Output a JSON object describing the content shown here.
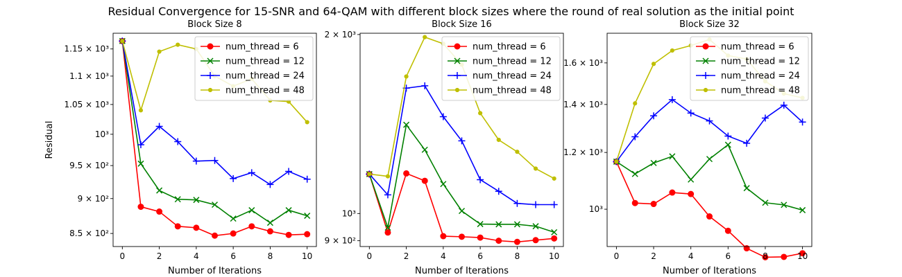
{
  "suptitle": "Residual Convergence for 15-SNR and 64-QAM with different block sizes where the round of real solution as the initial point",
  "colors": {
    "num_thread = 6": "#ff0000",
    "num_thread = 12": "#008000",
    "num_thread = 24": "#0000ff",
    "num_thread = 48": "#bfbf00"
  },
  "chart_data": [
    {
      "type": "line",
      "title": "Block Size 8",
      "xlabel": "Number of Iterations",
      "ylabel": "Residual",
      "yscale": "log",
      "xlim": [
        -0.5,
        10.5
      ],
      "ylim": [
        832,
        1180
      ],
      "x": [
        0,
        1,
        2,
        3,
        4,
        5,
        6,
        7,
        8,
        9,
        10
      ],
      "xticks": [
        "0",
        "2",
        "4",
        "6",
        "8",
        "10"
      ],
      "yticks": [
        {
          "value": 850,
          "label": "8.5 × 10²"
        },
        {
          "value": 900,
          "label": "9 × 10²"
        },
        {
          "value": 950,
          "label": "9.5 × 10²"
        },
        {
          "value": 1000,
          "label": "10³"
        },
        {
          "value": 1050,
          "label": "1.05 × 10³"
        },
        {
          "value": 1100,
          "label": "1.1 × 10³"
        },
        {
          "value": 1150,
          "label": "1.15 × 10³"
        }
      ],
      "legend_position": "top-right",
      "series": [
        {
          "name": "num_thread = 6",
          "marker": "o",
          "values": [
            1165,
            888,
            881,
            860,
            858,
            847,
            850,
            860,
            853,
            848,
            849
          ]
        },
        {
          "name": "num_thread = 12",
          "marker": "x",
          "values": [
            1165,
            953,
            912,
            899,
            898,
            891,
            871,
            883,
            865,
            883,
            875
          ]
        },
        {
          "name": "num_thread = 24",
          "marker": "+",
          "values": [
            1165,
            983,
            1013,
            988,
            957,
            958,
            930,
            939,
            921,
            941,
            929
          ]
        },
        {
          "name": "num_thread = 48",
          "marker": ".",
          "values": [
            1165,
            1040,
            1145,
            1158,
            1150,
            1100,
            1082,
            1095,
            1057,
            1055,
            1020
          ]
        }
      ]
    },
    {
      "type": "line",
      "title": "Block Size 16",
      "xlabel": "Number of Iterations",
      "ylabel": "",
      "yscale": "log",
      "xlim": [
        -0.5,
        10.5
      ],
      "ylim": [
        880,
        2010
      ],
      "x": [
        0,
        1,
        2,
        3,
        4,
        5,
        6,
        7,
        8,
        9,
        10
      ],
      "xticks": [
        "0",
        "2",
        "4",
        "6",
        "8",
        "10"
      ],
      "yticks": [
        {
          "value": 900,
          "label": "9 × 10²"
        },
        {
          "value": 1000,
          "label": "10³"
        },
        {
          "value": 2000,
          "label": "2 × 10³"
        }
      ],
      "legend_position": "top-right",
      "series": [
        {
          "name": "num_thread = 6",
          "marker": "o",
          "values": [
            1165,
            929,
            1168,
            1135,
            916,
            914,
            911,
            900,
            896,
            902,
            908
          ]
        },
        {
          "name": "num_thread = 12",
          "marker": "x",
          "values": [
            1165,
            947,
            1410,
            1280,
            1121,
            1010,
            960,
            959,
            959,
            952,
            930
          ]
        },
        {
          "name": "num_thread = 24",
          "marker": "+",
          "values": [
            1165,
            1075,
            1625,
            1640,
            1455,
            1325,
            1140,
            1090,
            1040,
            1035,
            1035
          ]
        },
        {
          "name": "num_thread = 48",
          "marker": ".",
          "values": [
            1165,
            1155,
            1700,
            1980,
            1930,
            1780,
            1475,
            1330,
            1270,
            1190,
            1145
          ]
        }
      ]
    },
    {
      "type": "line",
      "title": "Block Size 32",
      "xlabel": "Number of Iterations",
      "ylabel": "",
      "yscale": "log",
      "xlim": [
        -0.5,
        10.5
      ],
      "ylim": [
        887,
        1760
      ],
      "x": [
        0,
        1,
        2,
        3,
        4,
        5,
        6,
        7,
        8,
        9,
        10
      ],
      "xticks": [
        "0",
        "2",
        "4",
        "6",
        "8",
        "10"
      ],
      "yticks": [
        {
          "value": 1000,
          "label": "10³"
        },
        {
          "value": 1200,
          "label": "1.2 × 10³"
        },
        {
          "value": 1400,
          "label": "1.4 × 10³"
        },
        {
          "value": 1600,
          "label": "1.6 × 10³"
        }
      ],
      "legend_position": "top-right",
      "series": [
        {
          "name": "num_thread = 6",
          "marker": "o",
          "values": [
            1165,
            1020,
            1017,
            1055,
            1050,
            977,
            933,
            882,
            857,
            858,
            868
          ]
        },
        {
          "name": "num_thread = 12",
          "marker": "x",
          "values": [
            1165,
            1120,
            1160,
            1185,
            1100,
            1175,
            1230,
            1070,
            1021,
            1014,
            997
          ]
        },
        {
          "name": "num_thread = 24",
          "marker": "+",
          "values": [
            1165,
            1262,
            1350,
            1422,
            1362,
            1328,
            1265,
            1236,
            1340,
            1397,
            1323
          ]
        },
        {
          "name": "num_thread = 48",
          "marker": ".",
          "values": [
            1165,
            1405,
            1595,
            1665,
            1692,
            1725,
            1638,
            1620,
            1508,
            1450,
            1430
          ]
        }
      ]
    }
  ]
}
